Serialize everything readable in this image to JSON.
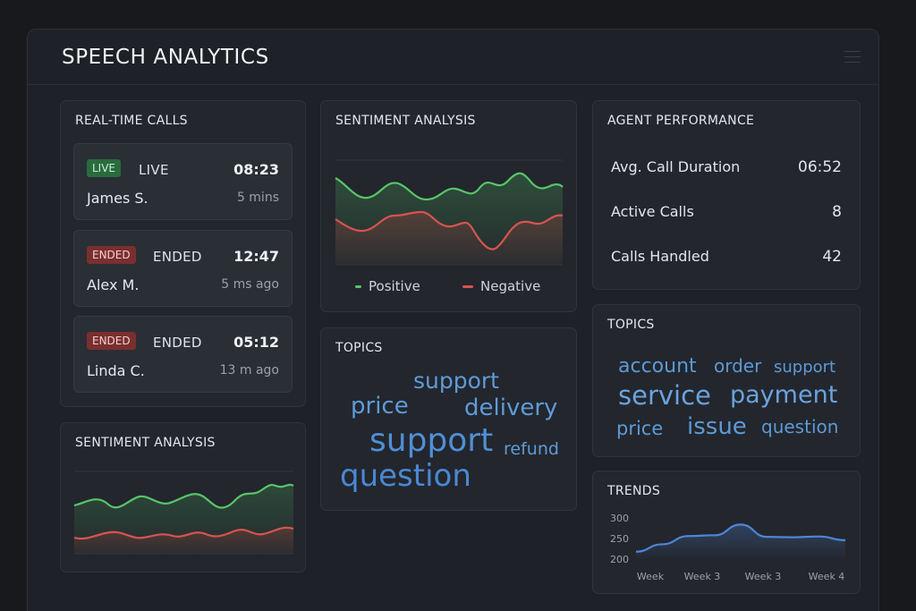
{
  "app": {
    "title": "SPEECH ANALYTICS"
  },
  "realtime": {
    "title": "REAL-TIME CALLS",
    "calls": [
      {
        "badge": "LIVE",
        "status": "LIVE",
        "time": "08:23",
        "name": "James S.",
        "duration": "5 mins"
      },
      {
        "badge": "ENDED",
        "status": "ENDED",
        "time": "12:47",
        "name": "Alex M.",
        "duration": "5 ms ago"
      },
      {
        "badge": "ENDED",
        "status": "ENDED",
        "time": "05:12",
        "name": "Linda C.",
        "duration": "13 m ago"
      }
    ]
  },
  "sentiment_main": {
    "title": "SENTIMENT ANALYSIS",
    "legend_positive": "Positive",
    "legend_negative": "Negative",
    "positive_color": "#58c46a",
    "negative_color": "#d9534f"
  },
  "sentiment_small": {
    "title": "SENTIMENT ANALYSIS"
  },
  "topics_center": {
    "title": "TOPICS",
    "words": [
      "support",
      "price",
      "delivery",
      "support",
      "refund",
      "question"
    ]
  },
  "agent": {
    "title": "AGENT PERFORMANCE",
    "metrics": [
      {
        "label": "Avg. Call Duration",
        "value": "06:52"
      },
      {
        "label": "Active Calls",
        "value": "8"
      },
      {
        "label": "Calls Handled",
        "value": "42"
      }
    ]
  },
  "topics_right": {
    "title": "TOPICS",
    "words": [
      "account",
      "order",
      "support",
      "service",
      "payment",
      "price",
      "issue",
      "question"
    ]
  },
  "trends": {
    "title": "TRENDS",
    "accent": "#4d86d8"
  },
  "chart_data": {
    "type": "line",
    "title": "TRENDS",
    "x_tick_labels": [
      "Week",
      "Week 3",
      "Week 3",
      "Week 4"
    ],
    "y_tick_labels": [
      "300",
      "250",
      "200"
    ],
    "ylim": [
      200,
      300
    ],
    "series": [
      {
        "values": [
          218,
          236,
          256,
          258,
          284,
          254,
          253,
          255,
          246
        ]
      }
    ]
  }
}
